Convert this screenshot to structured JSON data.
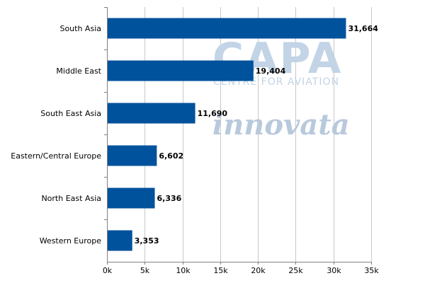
{
  "chart_data": {
    "type": "bar",
    "orientation": "horizontal",
    "categories": [
      "South Asia",
      "Middle East",
      "South East Asia",
      "Eastern/Central Europe",
      "North East Asia",
      "Western Europe"
    ],
    "values": [
      31664,
      19404,
      11690,
      6602,
      6336,
      3353
    ],
    "data_labels": [
      "31,664",
      "19,404",
      "11,690",
      "6,602",
      "6,336",
      "3,353"
    ],
    "xlim": [
      0,
      35000
    ],
    "xticks": [
      0,
      5000,
      10000,
      15000,
      20000,
      25000,
      30000,
      35000
    ],
    "xtick_labels": [
      "0k",
      "5k",
      "10k",
      "15k",
      "20k",
      "25k",
      "30k",
      "35k"
    ],
    "grid": "vertical",
    "legend": "none",
    "title": "",
    "xlabel": "",
    "ylabel": ""
  },
  "watermarks": {
    "capa": "CAPA",
    "capa_sub": "CENTRE FOR AVIATION",
    "innovata": "innovata"
  },
  "colors": {
    "bar": "#00529c",
    "grid": "#c8c8c8",
    "axis": "#808080"
  }
}
